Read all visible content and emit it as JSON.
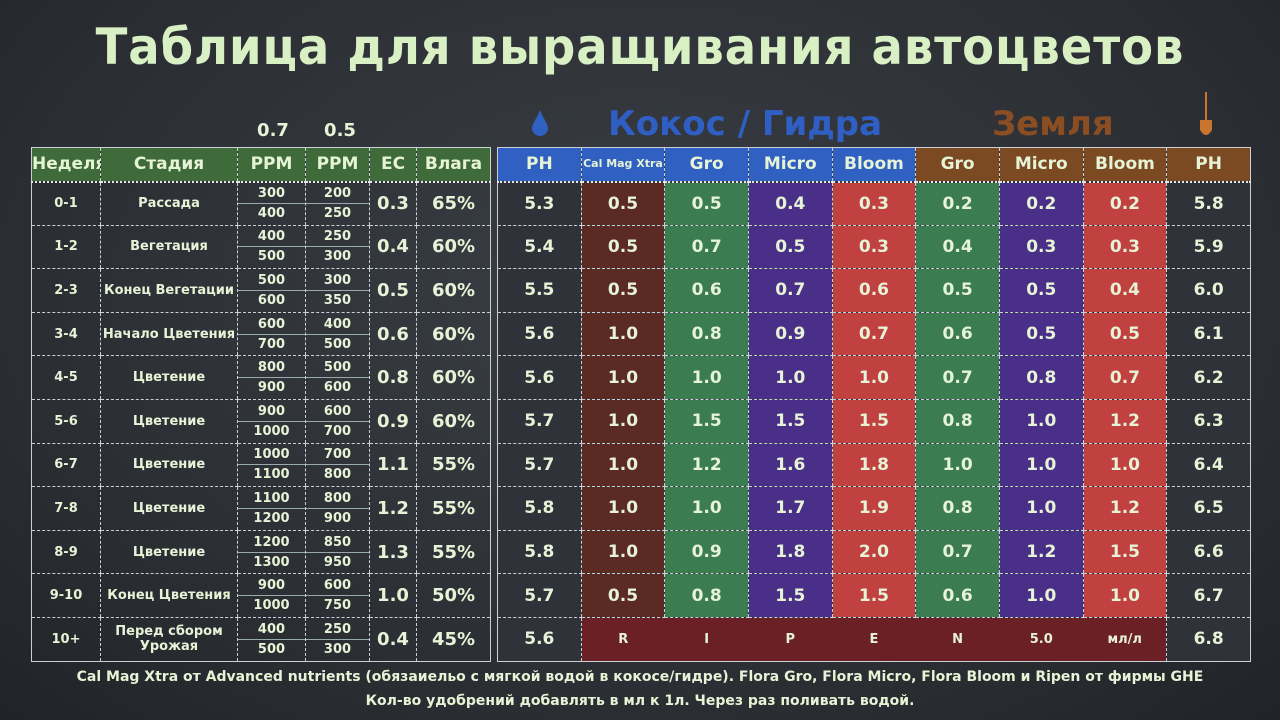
{
  "title": "Таблица для выращивания автоцветов",
  "ppm_factors": [
    "0.7",
    "0.5"
  ],
  "group_hydro": "Кокос / Гидра",
  "group_soil": "Земля",
  "colors": {
    "hydro": "#2f60c2",
    "soil": "#7b4a22",
    "header_left": "#3f6a3a",
    "calmag": "#5b2b23",
    "gro": "#3b7c51",
    "micro": "#4a2f88",
    "bloom": "#c0413f",
    "ripen": "#6b2026"
  },
  "icons": {
    "hydro": "water-drop-icon",
    "soil": "shovel-icon"
  },
  "left_headers": [
    "Неделя",
    "Стадия",
    "PPM",
    "PPM",
    "EC",
    "Влага"
  ],
  "right_headers": [
    "PH",
    "Cal Mag Xtra",
    "Gro",
    "Micro",
    "Bloom",
    "Gro",
    "Micro",
    "Bloom",
    "PH"
  ],
  "rows": [
    {
      "week": "0-1",
      "stage": "Рассада",
      "ppm07": [
        "300",
        "400"
      ],
      "ppm05": [
        "200",
        "250"
      ],
      "ec": "0.3",
      "hum": "65%",
      "hydro": [
        "5.3",
        "0.5",
        "0.5",
        "0.4",
        "0.3"
      ],
      "soil": [
        "0.2",
        "0.2",
        "0.2",
        "5.8"
      ]
    },
    {
      "week": "1-2",
      "stage": "Вегетация",
      "ppm07": [
        "400",
        "500"
      ],
      "ppm05": [
        "250",
        "300"
      ],
      "ec": "0.4",
      "hum": "60%",
      "hydro": [
        "5.4",
        "0.5",
        "0.7",
        "0.5",
        "0.3"
      ],
      "soil": [
        "0.4",
        "0.3",
        "0.3",
        "5.9"
      ]
    },
    {
      "week": "2-3",
      "stage": "Конец Вегетации",
      "ppm07": [
        "500",
        "600"
      ],
      "ppm05": [
        "300",
        "350"
      ],
      "ec": "0.5",
      "hum": "60%",
      "hydro": [
        "5.5",
        "0.5",
        "0.6",
        "0.7",
        "0.6"
      ],
      "soil": [
        "0.5",
        "0.5",
        "0.4",
        "6.0"
      ]
    },
    {
      "week": "3-4",
      "stage": "Начало Цветения",
      "ppm07": [
        "600",
        "700"
      ],
      "ppm05": [
        "400",
        "500"
      ],
      "ec": "0.6",
      "hum": "60%",
      "hydro": [
        "5.6",
        "1.0",
        "0.8",
        "0.9",
        "0.7"
      ],
      "soil": [
        "0.6",
        "0.5",
        "0.5",
        "6.1"
      ]
    },
    {
      "week": "4-5",
      "stage": "Цветение",
      "ppm07": [
        "800",
        "900"
      ],
      "ppm05": [
        "500",
        "600"
      ],
      "ec": "0.8",
      "hum": "60%",
      "hydro": [
        "5.6",
        "1.0",
        "1.0",
        "1.0",
        "1.0"
      ],
      "soil": [
        "0.7",
        "0.8",
        "0.7",
        "6.2"
      ]
    },
    {
      "week": "5-6",
      "stage": "Цветение",
      "ppm07": [
        "900",
        "1000"
      ],
      "ppm05": [
        "600",
        "700"
      ],
      "ec": "0.9",
      "hum": "60%",
      "hydro": [
        "5.7",
        "1.0",
        "1.5",
        "1.5",
        "1.5"
      ],
      "soil": [
        "0.8",
        "1.0",
        "1.2",
        "6.3"
      ]
    },
    {
      "week": "6-7",
      "stage": "Цветение",
      "ppm07": [
        "1000",
        "1100"
      ],
      "ppm05": [
        "700",
        "800"
      ],
      "ec": "1.1",
      "hum": "55%",
      "hydro": [
        "5.7",
        "1.0",
        "1.2",
        "1.6",
        "1.8"
      ],
      "soil": [
        "1.0",
        "1.0",
        "1.0",
        "6.4"
      ]
    },
    {
      "week": "7-8",
      "stage": "Цветение",
      "ppm07": [
        "1100",
        "1200"
      ],
      "ppm05": [
        "800",
        "900"
      ],
      "ec": "1.2",
      "hum": "55%",
      "hydro": [
        "5.8",
        "1.0",
        "1.0",
        "1.7",
        "1.9"
      ],
      "soil": [
        "0.8",
        "1.0",
        "1.2",
        "6.5"
      ]
    },
    {
      "week": "8-9",
      "stage": "Цветение",
      "ppm07": [
        "1200",
        "1300"
      ],
      "ppm05": [
        "850",
        "950"
      ],
      "ec": "1.3",
      "hum": "55%",
      "hydro": [
        "5.8",
        "1.0",
        "0.9",
        "1.8",
        "2.0"
      ],
      "soil": [
        "0.7",
        "1.2",
        "1.5",
        "6.6"
      ]
    },
    {
      "week": "9-10",
      "stage": "Конец Цветения",
      "ppm07": [
        "900",
        "1000"
      ],
      "ppm05": [
        "600",
        "750"
      ],
      "ec": "1.0",
      "hum": "50%",
      "hydro": [
        "5.7",
        "0.5",
        "0.8",
        "1.5",
        "1.5"
      ],
      "soil": [
        "0.6",
        "1.0",
        "1.0",
        "6.7"
      ]
    },
    {
      "week": "10+",
      "stage": "Перед сбором Урожая",
      "ppm07": [
        "400",
        "500"
      ],
      "ppm05": [
        "250",
        "300"
      ],
      "ec": "0.4",
      "hum": "45%",
      "hydro": [
        "5.6"
      ],
      "ripen": [
        "R",
        "I",
        "P",
        "E",
        "N",
        "5.0",
        "мл/л"
      ],
      "soil_ph": "6.8"
    }
  ],
  "footer": [
    "Cal Mag Xtra от Advanced nutrients (обязаиельо с мягкой водой в кокосе/гидре).  Flora Gro, Flora Micro, Flora Bloom и Ripen от фирмы GHE",
    "Кол-во удобрений добавлять в мл к 1л. Через раз поливать водой."
  ]
}
